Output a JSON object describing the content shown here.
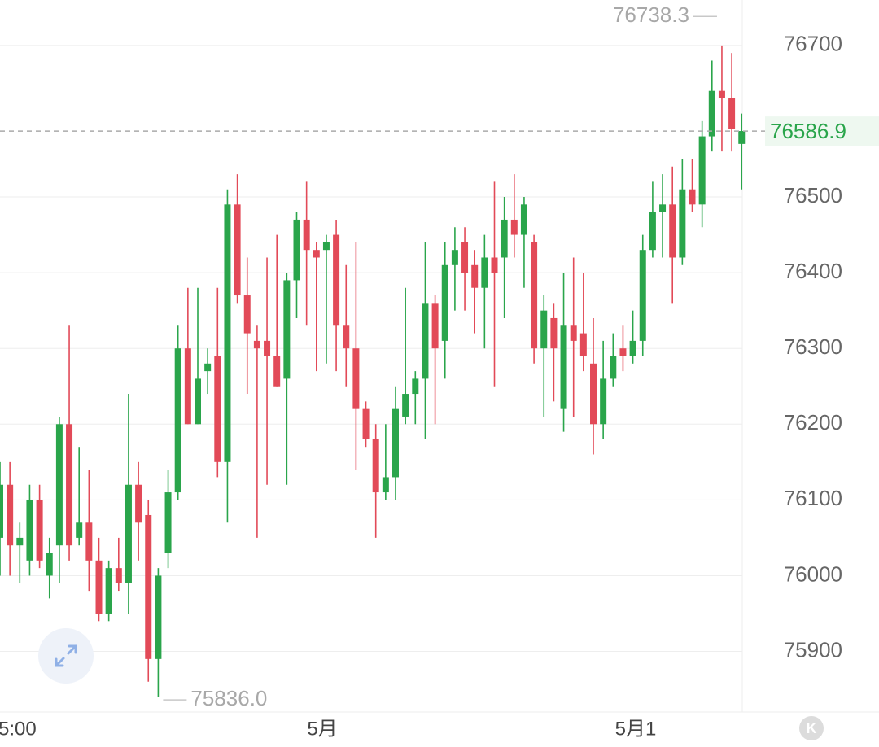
{
  "chart_data": {
    "type": "candlestick",
    "title": "",
    "xlabel": "",
    "ylabel": "",
    "y_ticks": [
      75900,
      76000,
      76100,
      76200,
      76300,
      76400,
      76500,
      76700
    ],
    "x_labels": [
      "5:00",
      "5月",
      "5月1"
    ],
    "ylim": [
      75820,
      76760
    ],
    "last_price": "76586.9",
    "high_marker": "76738.3",
    "low_marker": "75836.0",
    "grid": true,
    "colors": {
      "up": "#2aa54b",
      "down": "#e24a58",
      "grid": "#eeeeee",
      "last_price_line": "#aaaaaa"
    },
    "candles": [
      [
        76050,
        76120,
        76150,
        76000
      ],
      [
        76120,
        76040,
        76150,
        76000
      ],
      [
        76040,
        76050,
        76070,
        75990
      ],
      [
        76020,
        76100,
        76120,
        76000
      ],
      [
        76100,
        76020,
        76120,
        76010
      ],
      [
        76000,
        76030,
        76050,
        75970
      ],
      [
        76040,
        76200,
        76210,
        75990
      ],
      [
        76200,
        76040,
        76330,
        76020
      ],
      [
        76050,
        76070,
        76170,
        76040
      ],
      [
        76070,
        76020,
        76140,
        75980
      ],
      [
        76020,
        75950,
        76050,
        75940
      ],
      [
        75950,
        76010,
        76020,
        75940
      ],
      [
        76010,
        75990,
        76050,
        75980
      ],
      [
        75990,
        76120,
        76240,
        75950
      ],
      [
        76120,
        76070,
        76150,
        76020
      ],
      [
        76080,
        75890,
        76100,
        75860
      ],
      [
        75890,
        76000,
        76010,
        75840
      ],
      [
        76030,
        76110,
        76140,
        76010
      ],
      [
        76110,
        76300,
        76330,
        76100
      ],
      [
        76300,
        76200,
        76380,
        76200
      ],
      [
        76200,
        76260,
        76380,
        76200
      ],
      [
        76270,
        76280,
        76300,
        76240
      ],
      [
        76290,
        76150,
        76380,
        76130
      ],
      [
        76150,
        76490,
        76510,
        76070
      ],
      [
        76490,
        76370,
        76530,
        76360
      ],
      [
        76370,
        76320,
        76420,
        76240
      ],
      [
        76310,
        76300,
        76330,
        76050
      ],
      [
        76310,
        76290,
        76420,
        76120
      ],
      [
        76290,
        76250,
        76450,
        76250
      ],
      [
        76260,
        76390,
        76400,
        76120
      ],
      [
        76390,
        76470,
        76480,
        76340
      ],
      [
        76470,
        76430,
        76520,
        76330
      ],
      [
        76430,
        76420,
        76440,
        76270
      ],
      [
        76430,
        76440,
        76450,
        76280
      ],
      [
        76450,
        76330,
        76470,
        76270
      ],
      [
        76330,
        76300,
        76410,
        76250
      ],
      [
        76300,
        76220,
        76440,
        76140
      ],
      [
        76220,
        76180,
        76230,
        76170
      ],
      [
        76180,
        76110,
        76200,
        76050
      ],
      [
        76110,
        76130,
        76200,
        76100
      ],
      [
        76130,
        76220,
        76250,
        76100
      ],
      [
        76210,
        76240,
        76380,
        76200
      ],
      [
        76240,
        76260,
        76270,
        76200
      ],
      [
        76260,
        76360,
        76440,
        76180
      ],
      [
        76360,
        76300,
        76370,
        76200
      ],
      [
        76310,
        76410,
        76440,
        76260
      ],
      [
        76410,
        76430,
        76460,
        76350
      ],
      [
        76440,
        76400,
        76460,
        76350
      ],
      [
        76410,
        76380,
        76430,
        76320
      ],
      [
        76380,
        76420,
        76450,
        76300
      ],
      [
        76420,
        76400,
        76520,
        76250
      ],
      [
        76420,
        76470,
        76500,
        76340
      ],
      [
        76470,
        76450,
        76530,
        76420
      ],
      [
        76450,
        76490,
        76500,
        76380
      ],
      [
        76440,
        76300,
        76450,
        76280
      ],
      [
        76300,
        76350,
        76370,
        76210
      ],
      [
        76340,
        76300,
        76360,
        76230
      ],
      [
        76220,
        76330,
        76400,
        76190
      ],
      [
        76330,
        76310,
        76420,
        76210
      ],
      [
        76320,
        76290,
        76400,
        76270
      ],
      [
        76280,
        76200,
        76340,
        76160
      ],
      [
        76200,
        76260,
        76310,
        76180
      ],
      [
        76260,
        76290,
        76320,
        76250
      ],
      [
        76300,
        76290,
        76330,
        76270
      ],
      [
        76290,
        76310,
        76350,
        76280
      ],
      [
        76310,
        76430,
        76450,
        76290
      ],
      [
        76430,
        76480,
        76520,
        76420
      ],
      [
        76480,
        76490,
        76530,
        76420
      ],
      [
        76490,
        76420,
        76540,
        76360
      ],
      [
        76420,
        76510,
        76550,
        76410
      ],
      [
        76510,
        76490,
        76550,
        76480
      ],
      [
        76490,
        76580,
        76600,
        76460
      ],
      [
        76580,
        76640,
        76680,
        76560
      ],
      [
        76640,
        76630,
        76700,
        76560
      ],
      [
        76630,
        76590,
        76690,
        76560
      ],
      [
        76570,
        76587,
        76610,
        76510
      ]
    ]
  }
}
